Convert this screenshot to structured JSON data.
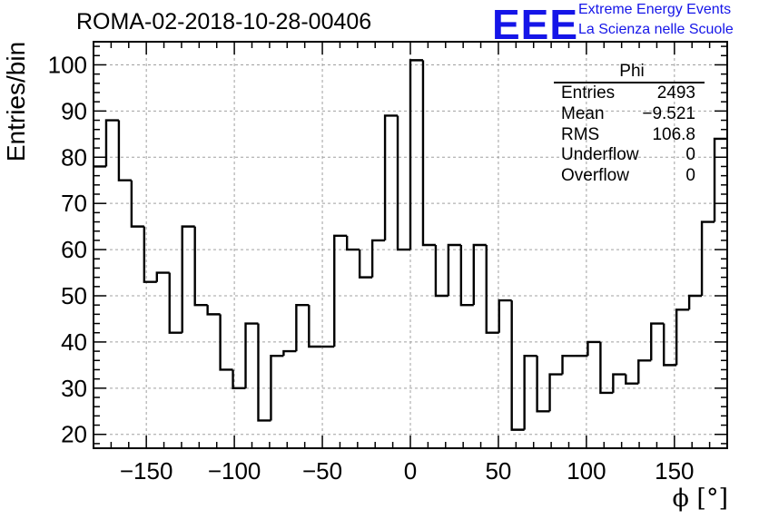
{
  "header": {
    "title": "ROMA-02-2018-10-28-00406",
    "logo": "EEE",
    "logo_line1": "Extreme Energy Events",
    "logo_line2": "La Scienza nelle Scuole"
  },
  "stats": {
    "title": "Phi",
    "rows": [
      {
        "key": "Entries",
        "value": "2493"
      },
      {
        "key": "Mean",
        "value": "−9.521"
      },
      {
        "key": "RMS",
        "value": "106.8"
      },
      {
        "key": "Underflow",
        "value": "0"
      },
      {
        "key": "Overflow",
        "value": "0"
      }
    ]
  },
  "chart_data": {
    "type": "bar",
    "style": "step-histogram",
    "title": "ROMA-02-2018-10-28-00406",
    "xlabel": "ϕ [°]",
    "ylabel": "Entries/bin",
    "xlim": [
      -180,
      180
    ],
    "ylim": [
      17,
      105
    ],
    "bin_width": 7.2,
    "grid": true,
    "x_ticks": [
      -150,
      -100,
      -50,
      0,
      50,
      100,
      150
    ],
    "x_tick_labels": [
      "−150",
      "−100",
      "−50",
      "0",
      "50",
      "100",
      "150"
    ],
    "y_ticks": [
      20,
      30,
      40,
      50,
      60,
      70,
      80,
      90,
      100
    ],
    "y_tick_labels": [
      "20",
      "30",
      "40",
      "50",
      "60",
      "70",
      "80",
      "90",
      "100"
    ],
    "values": [
      78,
      88,
      75,
      65,
      53,
      55,
      42,
      65,
      48,
      46,
      34,
      30,
      44,
      23,
      37,
      38,
      48,
      39,
      39,
      63,
      60,
      54,
      62,
      89,
      60,
      101,
      61,
      50,
      61,
      48,
      61,
      42,
      49,
      21,
      37,
      25,
      33,
      37,
      37,
      40,
      29,
      33,
      31,
      36,
      44,
      35,
      47,
      50,
      66,
      84
    ]
  }
}
